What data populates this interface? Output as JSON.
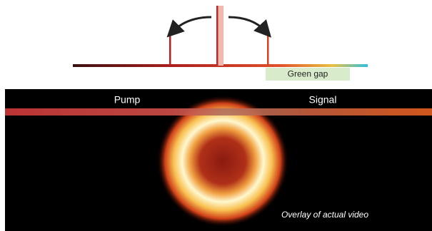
{
  "labels": {
    "green_gap": "Green gap",
    "pump": "Pump",
    "signal": "Signal",
    "caption": "Overlay of actual video"
  }
}
